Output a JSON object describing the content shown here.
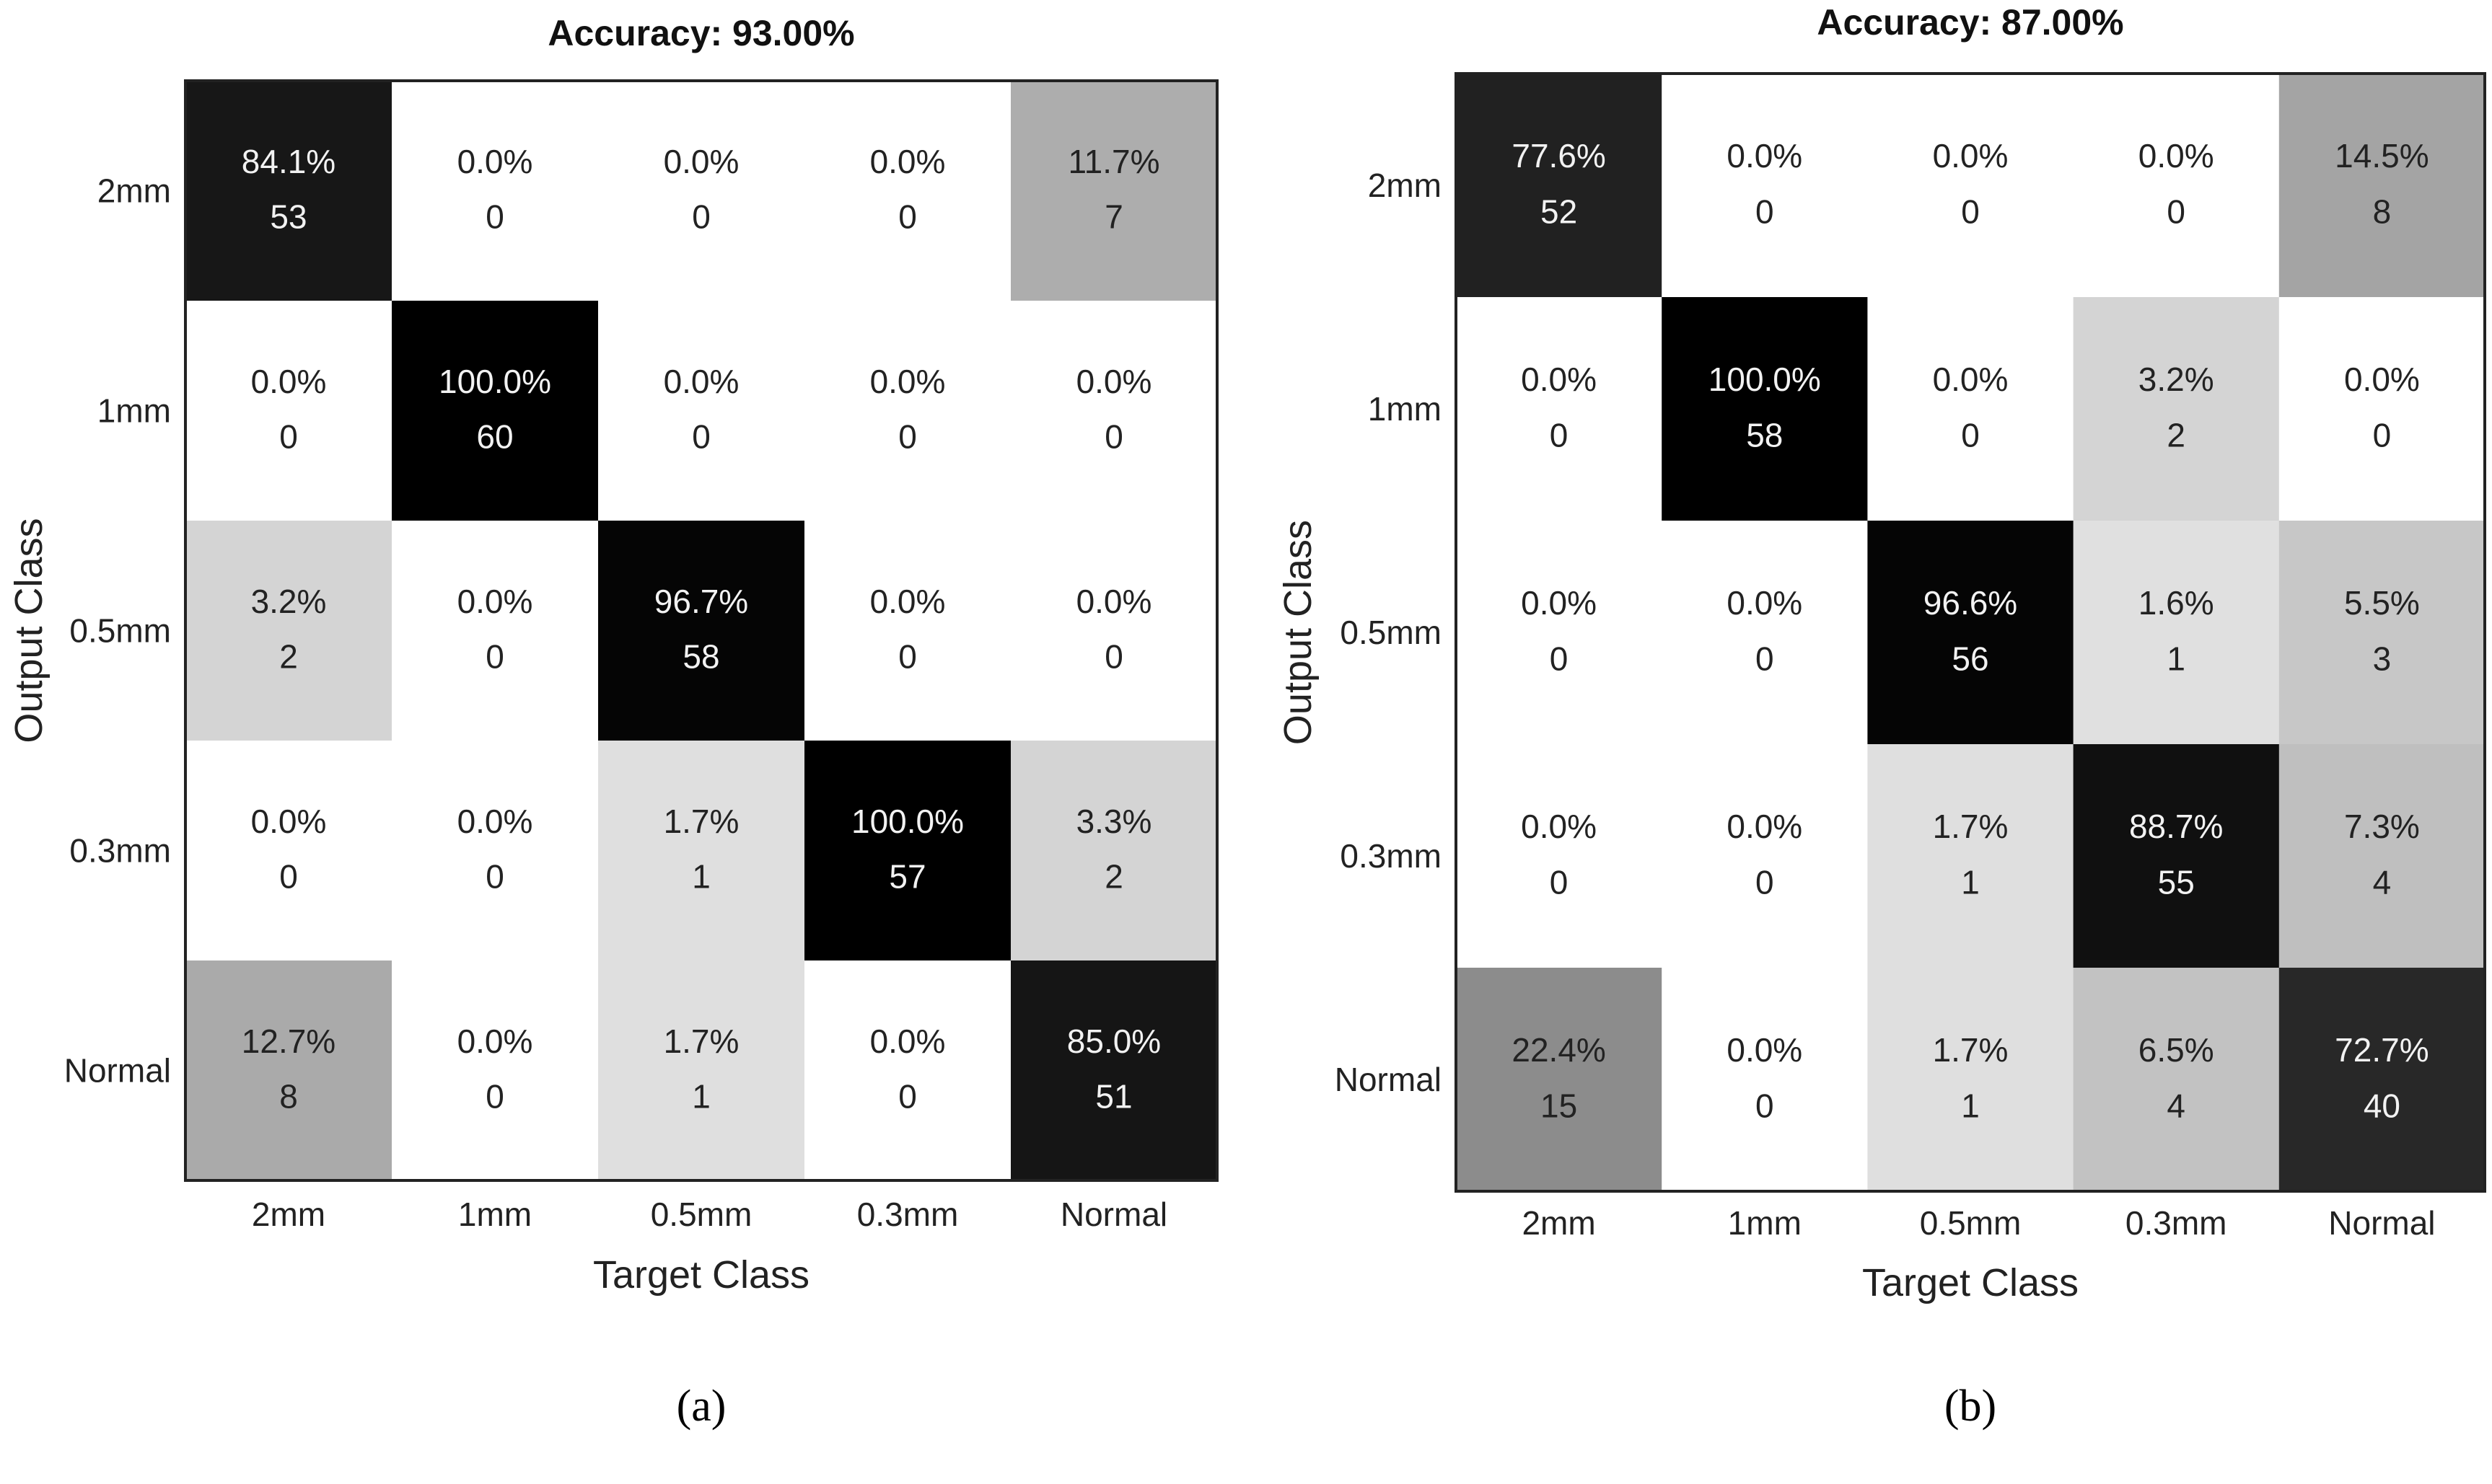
{
  "chart_data": [
    {
      "type": "heatmap",
      "panel_label": "(a)",
      "title": "Accuracy: 93.00%",
      "xlabel": "Target Class",
      "ylabel": "Output Class",
      "x_categories": [
        "2mm",
        "1mm",
        "0.5mm",
        "0.3mm",
        "Normal"
      ],
      "y_categories": [
        "2mm",
        "1mm",
        "0.5mm",
        "0.3mm",
        "Normal"
      ],
      "colormap": "gray (darker = higher percentage)",
      "percentages": [
        [
          "84.1%",
          "0.0%",
          "0.0%",
          "0.0%",
          "11.7%"
        ],
        [
          "0.0%",
          "100.0%",
          "0.0%",
          "0.0%",
          "0.0%"
        ],
        [
          "3.2%",
          "0.0%",
          "96.7%",
          "0.0%",
          "0.0%"
        ],
        [
          "0.0%",
          "0.0%",
          "1.7%",
          "100.0%",
          "3.3%"
        ],
        [
          "12.7%",
          "0.0%",
          "1.7%",
          "0.0%",
          "85.0%"
        ]
      ],
      "counts": [
        [
          53,
          0,
          0,
          0,
          7
        ],
        [
          0,
          60,
          0,
          0,
          0
        ],
        [
          2,
          0,
          58,
          0,
          0
        ],
        [
          0,
          0,
          1,
          57,
          2
        ],
        [
          8,
          0,
          1,
          0,
          51
        ]
      ]
    },
    {
      "type": "heatmap",
      "panel_label": "(b)",
      "title": "Accuracy: 87.00%",
      "xlabel": "Target Class",
      "ylabel": "Output Class",
      "x_categories": [
        "2mm",
        "1mm",
        "0.5mm",
        "0.3mm",
        "Normal"
      ],
      "y_categories": [
        "2mm",
        "1mm",
        "0.5mm",
        "0.3mm",
        "Normal"
      ],
      "colormap": "gray (darker = higher percentage)",
      "percentages": [
        [
          "77.6%",
          "0.0%",
          "0.0%",
          "0.0%",
          "14.5%"
        ],
        [
          "0.0%",
          "100.0%",
          "0.0%",
          "3.2%",
          "0.0%"
        ],
        [
          "0.0%",
          "0.0%",
          "96.6%",
          "1.6%",
          "5.5%"
        ],
        [
          "0.0%",
          "0.0%",
          "1.7%",
          "88.7%",
          "7.3%"
        ],
        [
          "22.4%",
          "0.0%",
          "1.7%",
          "6.5%",
          "72.7%"
        ]
      ],
      "counts": [
        [
          52,
          0,
          0,
          0,
          8
        ],
        [
          0,
          58,
          0,
          2,
          0
        ],
        [
          0,
          0,
          56,
          1,
          3
        ],
        [
          0,
          0,
          1,
          55,
          4
        ],
        [
          15,
          0,
          1,
          4,
          40
        ]
      ]
    }
  ]
}
